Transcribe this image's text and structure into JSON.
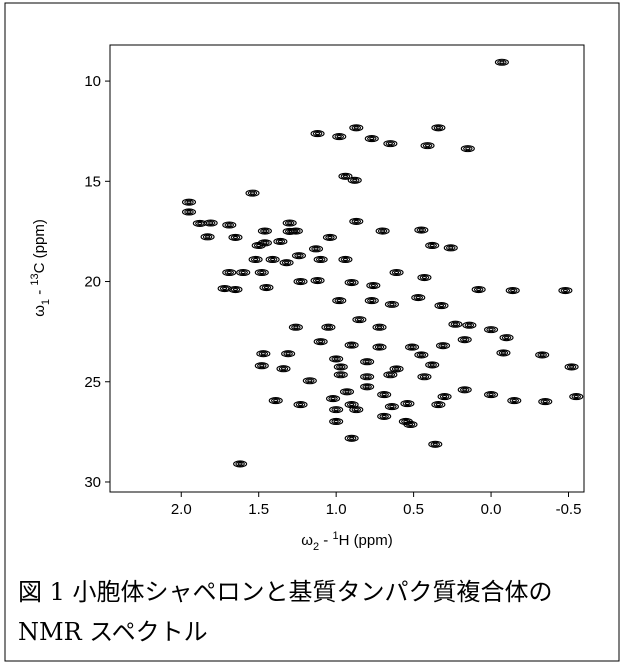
{
  "chart_data": {
    "type": "contour",
    "x_label": [
      "ω",
      "2",
      " - ",
      "1",
      "H  (ppm)"
    ],
    "y_label": [
      "ω",
      "1",
      " - ",
      "13",
      "C  (ppm)"
    ],
    "caption": [
      "図 1 小胞体シャペロンと基質タンパク質複合体の",
      "NMR スペクトル"
    ],
    "xlim": [
      2.46,
      -0.6
    ],
    "ylim": [
      8.2,
      30.5
    ],
    "y_reversed": true,
    "xticks": [
      {
        "value": 2,
        "label": "2.0"
      },
      1.5,
      {
        "value": 1,
        "label": "1.0"
      },
      0.5,
      {
        "value": 0,
        "label": "0.0"
      },
      -0.5
    ],
    "yticks": [
      10,
      15,
      20,
      25,
      30
    ],
    "color": "#000000",
    "x": [
      -0.07,
      1.12,
      0.98,
      0.87,
      0.77,
      0.65,
      0.34,
      0.15,
      0.94,
      0.88,
      0.41,
      1.95,
      1.95,
      1.81,
      1.88,
      1.69,
      1.54,
      1.46,
      1.3,
      1.3,
      1.65,
      1.5,
      1.46,
      1.36,
      1.26,
      1.52,
      1.41,
      1.24,
      1.6,
      1.48,
      1.32,
      1.83,
      1.65,
      1.45,
      1.13,
      1.1,
      1.04,
      0.94,
      0.87,
      0.7,
      0.45,
      0.26,
      0.38,
      0.43,
      0.61,
      1.23,
      1.12,
      0.9,
      0.76,
      -0.14,
      -0.48,
      0.08,
      0.47,
      0.32,
      0.98,
      0.77,
      1.26,
      0.64,
      1.05,
      0.85,
      0.72,
      0.23,
      0.14,
      0.0,
      -0.1,
      1.1,
      0.9,
      0.72,
      0.51,
      0.31,
      0.17,
      -0.08,
      -0.33,
      1.0,
      0.8,
      0.61,
      0.45,
      1.47,
      1.31,
      1.48,
      1.34,
      1.17,
      0.97,
      0.97,
      0.8,
      0.65,
      0.43,
      0.38,
      0.93,
      0.8,
      0.69,
      1.02,
      0.9,
      0.64,
      0.3,
      0.34,
      0.17,
      0.0,
      -0.15,
      -0.35,
      -0.55,
      -0.52,
      1.0,
      1.23,
      1.39,
      1.0,
      0.87,
      0.69,
      0.54,
      0.52,
      0.9,
      0.36,
      0.55,
      1.62,
      1.69,
      1.72
    ],
    "values": [
      9.06,
      12.62,
      12.77,
      12.33,
      12.87,
      13.12,
      12.33,
      13.37,
      14.75,
      14.95,
      13.22,
      16.04,
      16.53,
      17.08,
      17.1,
      17.18,
      15.59,
      17.48,
      17.08,
      17.5,
      17.8,
      18.2,
      18.07,
      18.0,
      17.48,
      18.9,
      18.9,
      18.71,
      19.55,
      19.55,
      19.06,
      17.77,
      20.4,
      20.3,
      18.37,
      18.9,
      17.8,
      18.9,
      17.0,
      17.48,
      17.43,
      18.32,
      18.2,
      19.8,
      19.55,
      20.0,
      19.95,
      20.05,
      20.2,
      20.45,
      20.45,
      20.4,
      20.8,
      21.2,
      20.95,
      20.95,
      22.28,
      21.14,
      22.28,
      21.9,
      22.28,
      22.13,
      22.18,
      22.4,
      22.8,
      23.0,
      23.17,
      23.27,
      23.27,
      23.2,
      22.9,
      23.56,
      23.66,
      23.86,
      24.0,
      24.36,
      23.66,
      23.6,
      23.6,
      24.2,
      24.35,
      24.95,
      24.26,
      24.65,
      24.75,
      24.65,
      24.75,
      24.16,
      25.5,
      25.25,
      25.64,
      25.84,
      26.14,
      26.24,
      25.74,
      26.14,
      25.4,
      25.64,
      25.94,
      25.99,
      25.74,
      24.26,
      26.39,
      26.14,
      25.94,
      26.98,
      26.39,
      26.73,
      26.09,
      27.13,
      27.82,
      28.12,
      26.98,
      29.1,
      19.55,
      20.35
    ]
  }
}
